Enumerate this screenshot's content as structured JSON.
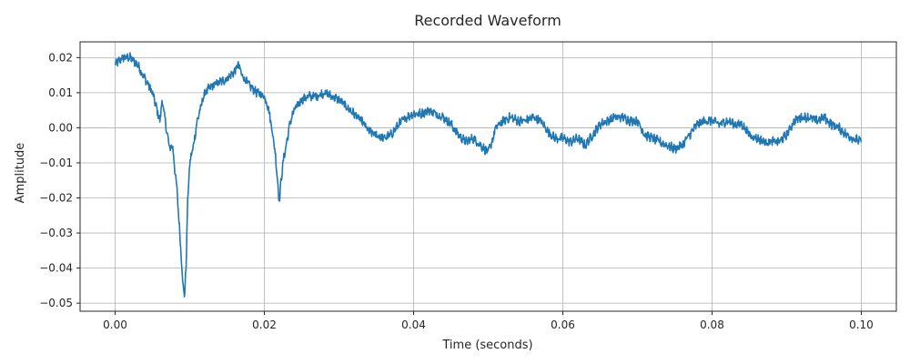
{
  "chart_data": {
    "type": "line",
    "title": "Recorded Waveform",
    "xlabel": "Time (seconds)",
    "ylabel": "Amplitude",
    "xlim": [
      -0.0047,
      0.1047
    ],
    "ylim": [
      -0.0523,
      0.0245
    ],
    "grid": true,
    "x_ticks": [
      0.0,
      0.02,
      0.04,
      0.06,
      0.08,
      0.1
    ],
    "x_tick_labels": [
      "0.00",
      "0.02",
      "0.04",
      "0.06",
      "0.08",
      "0.10"
    ],
    "y_ticks": [
      0.02,
      0.01,
      0.0,
      -0.01,
      -0.02,
      -0.03,
      -0.04,
      -0.05
    ],
    "y_tick_labels": [
      "0.02",
      "0.01",
      "0.00",
      "−0.01",
      "−0.02",
      "−0.03",
      "−0.04",
      "−0.05"
    ],
    "series": [
      {
        "color": "#1f77b4",
        "x": [
          0.0,
          0.001,
          0.002,
          0.003,
          0.004,
          0.005,
          0.0055,
          0.006,
          0.0063,
          0.0067,
          0.007,
          0.0073,
          0.0077,
          0.008,
          0.0083,
          0.0086,
          0.0089,
          0.0091,
          0.0093,
          0.0095,
          0.0097,
          0.01,
          0.0105,
          0.011,
          0.012,
          0.013,
          0.014,
          0.015,
          0.016,
          0.0165,
          0.017,
          0.018,
          0.019,
          0.02,
          0.0205,
          0.021,
          0.0215,
          0.0218,
          0.022,
          0.0222,
          0.0225,
          0.023,
          0.0235,
          0.024,
          0.025,
          0.026,
          0.027,
          0.028,
          0.029,
          0.03,
          0.031,
          0.032,
          0.033,
          0.034,
          0.035,
          0.036,
          0.037,
          0.038,
          0.039,
          0.04,
          0.041,
          0.042,
          0.043,
          0.044,
          0.045,
          0.046,
          0.047,
          0.048,
          0.049,
          0.05,
          0.0505,
          0.051,
          0.052,
          0.053,
          0.054,
          0.055,
          0.056,
          0.057,
          0.058,
          0.059,
          0.06,
          0.061,
          0.062,
          0.063,
          0.064,
          0.065,
          0.066,
          0.067,
          0.068,
          0.069,
          0.07,
          0.071,
          0.072,
          0.073,
          0.074,
          0.075,
          0.076,
          0.077,
          0.078,
          0.079,
          0.08,
          0.081,
          0.082,
          0.083,
          0.084,
          0.085,
          0.086,
          0.087,
          0.088,
          0.089,
          0.09,
          0.091,
          0.092,
          0.093,
          0.094,
          0.095,
          0.096,
          0.097,
          0.098,
          0.099,
          0.1
        ],
        "y": [
          0.018,
          0.02,
          0.02,
          0.018,
          0.014,
          0.01,
          0.006,
          0.002,
          0.008,
          0.002,
          -0.002,
          -0.006,
          -0.005,
          -0.012,
          -0.018,
          -0.028,
          -0.038,
          -0.045,
          -0.048,
          -0.04,
          -0.022,
          -0.01,
          -0.005,
          0.002,
          0.01,
          0.012,
          0.013,
          0.014,
          0.016,
          0.018,
          0.015,
          0.012,
          0.01,
          0.009,
          0.006,
          0.0,
          -0.008,
          -0.016,
          -0.021,
          -0.016,
          -0.01,
          -0.004,
          0.002,
          0.005,
          0.008,
          0.009,
          0.009,
          0.01,
          0.009,
          0.008,
          0.006,
          0.004,
          0.002,
          -0.001,
          -0.002,
          -0.003,
          -0.002,
          0.001,
          0.003,
          0.004,
          0.004,
          0.005,
          0.004,
          0.003,
          0.001,
          -0.002,
          -0.004,
          -0.003,
          -0.005,
          -0.007,
          -0.004,
          0.0,
          0.002,
          0.003,
          0.002,
          0.002,
          0.003,
          0.002,
          -0.001,
          -0.003,
          -0.003,
          -0.004,
          -0.003,
          -0.005,
          -0.002,
          0.001,
          0.002,
          0.003,
          0.003,
          0.002,
          0.002,
          -0.002,
          -0.003,
          -0.004,
          -0.005,
          -0.006,
          -0.005,
          -0.002,
          0.001,
          0.002,
          0.002,
          0.001,
          0.002,
          0.001,
          0.001,
          -0.002,
          -0.003,
          -0.004,
          -0.004,
          -0.004,
          -0.002,
          0.002,
          0.003,
          0.003,
          0.002,
          0.003,
          0.001,
          0.0,
          -0.002,
          -0.003,
          -0.004
        ]
      }
    ]
  }
}
